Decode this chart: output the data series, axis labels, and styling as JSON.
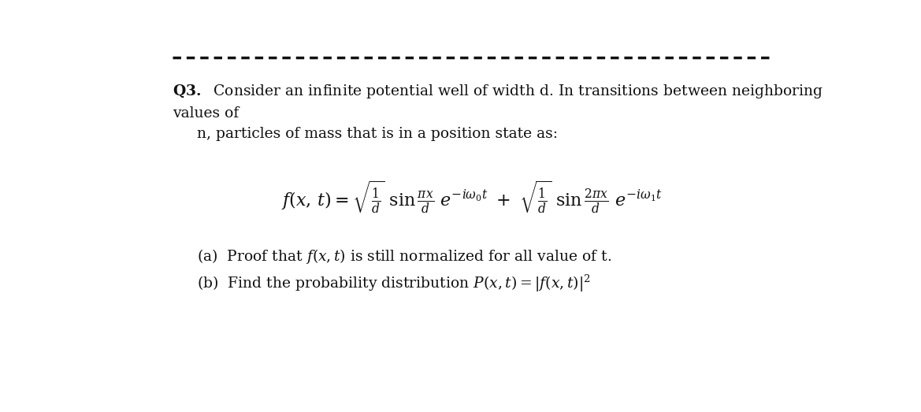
{
  "bg_color": "#ffffff",
  "dashed_line_color": "#111111",
  "text_color": "#111111",
  "title_line1": "\\textbf{Q3.}  Consider an infinite potential well of width d. In transitions between neighboring",
  "title_line2": "values of",
  "title_line3": "    n, particles of mass that is in a position state as:",
  "figwidth": 11.69,
  "figheight": 5.23,
  "dpi": 100,
  "fs_main": 13.5,
  "fs_eq": 16
}
